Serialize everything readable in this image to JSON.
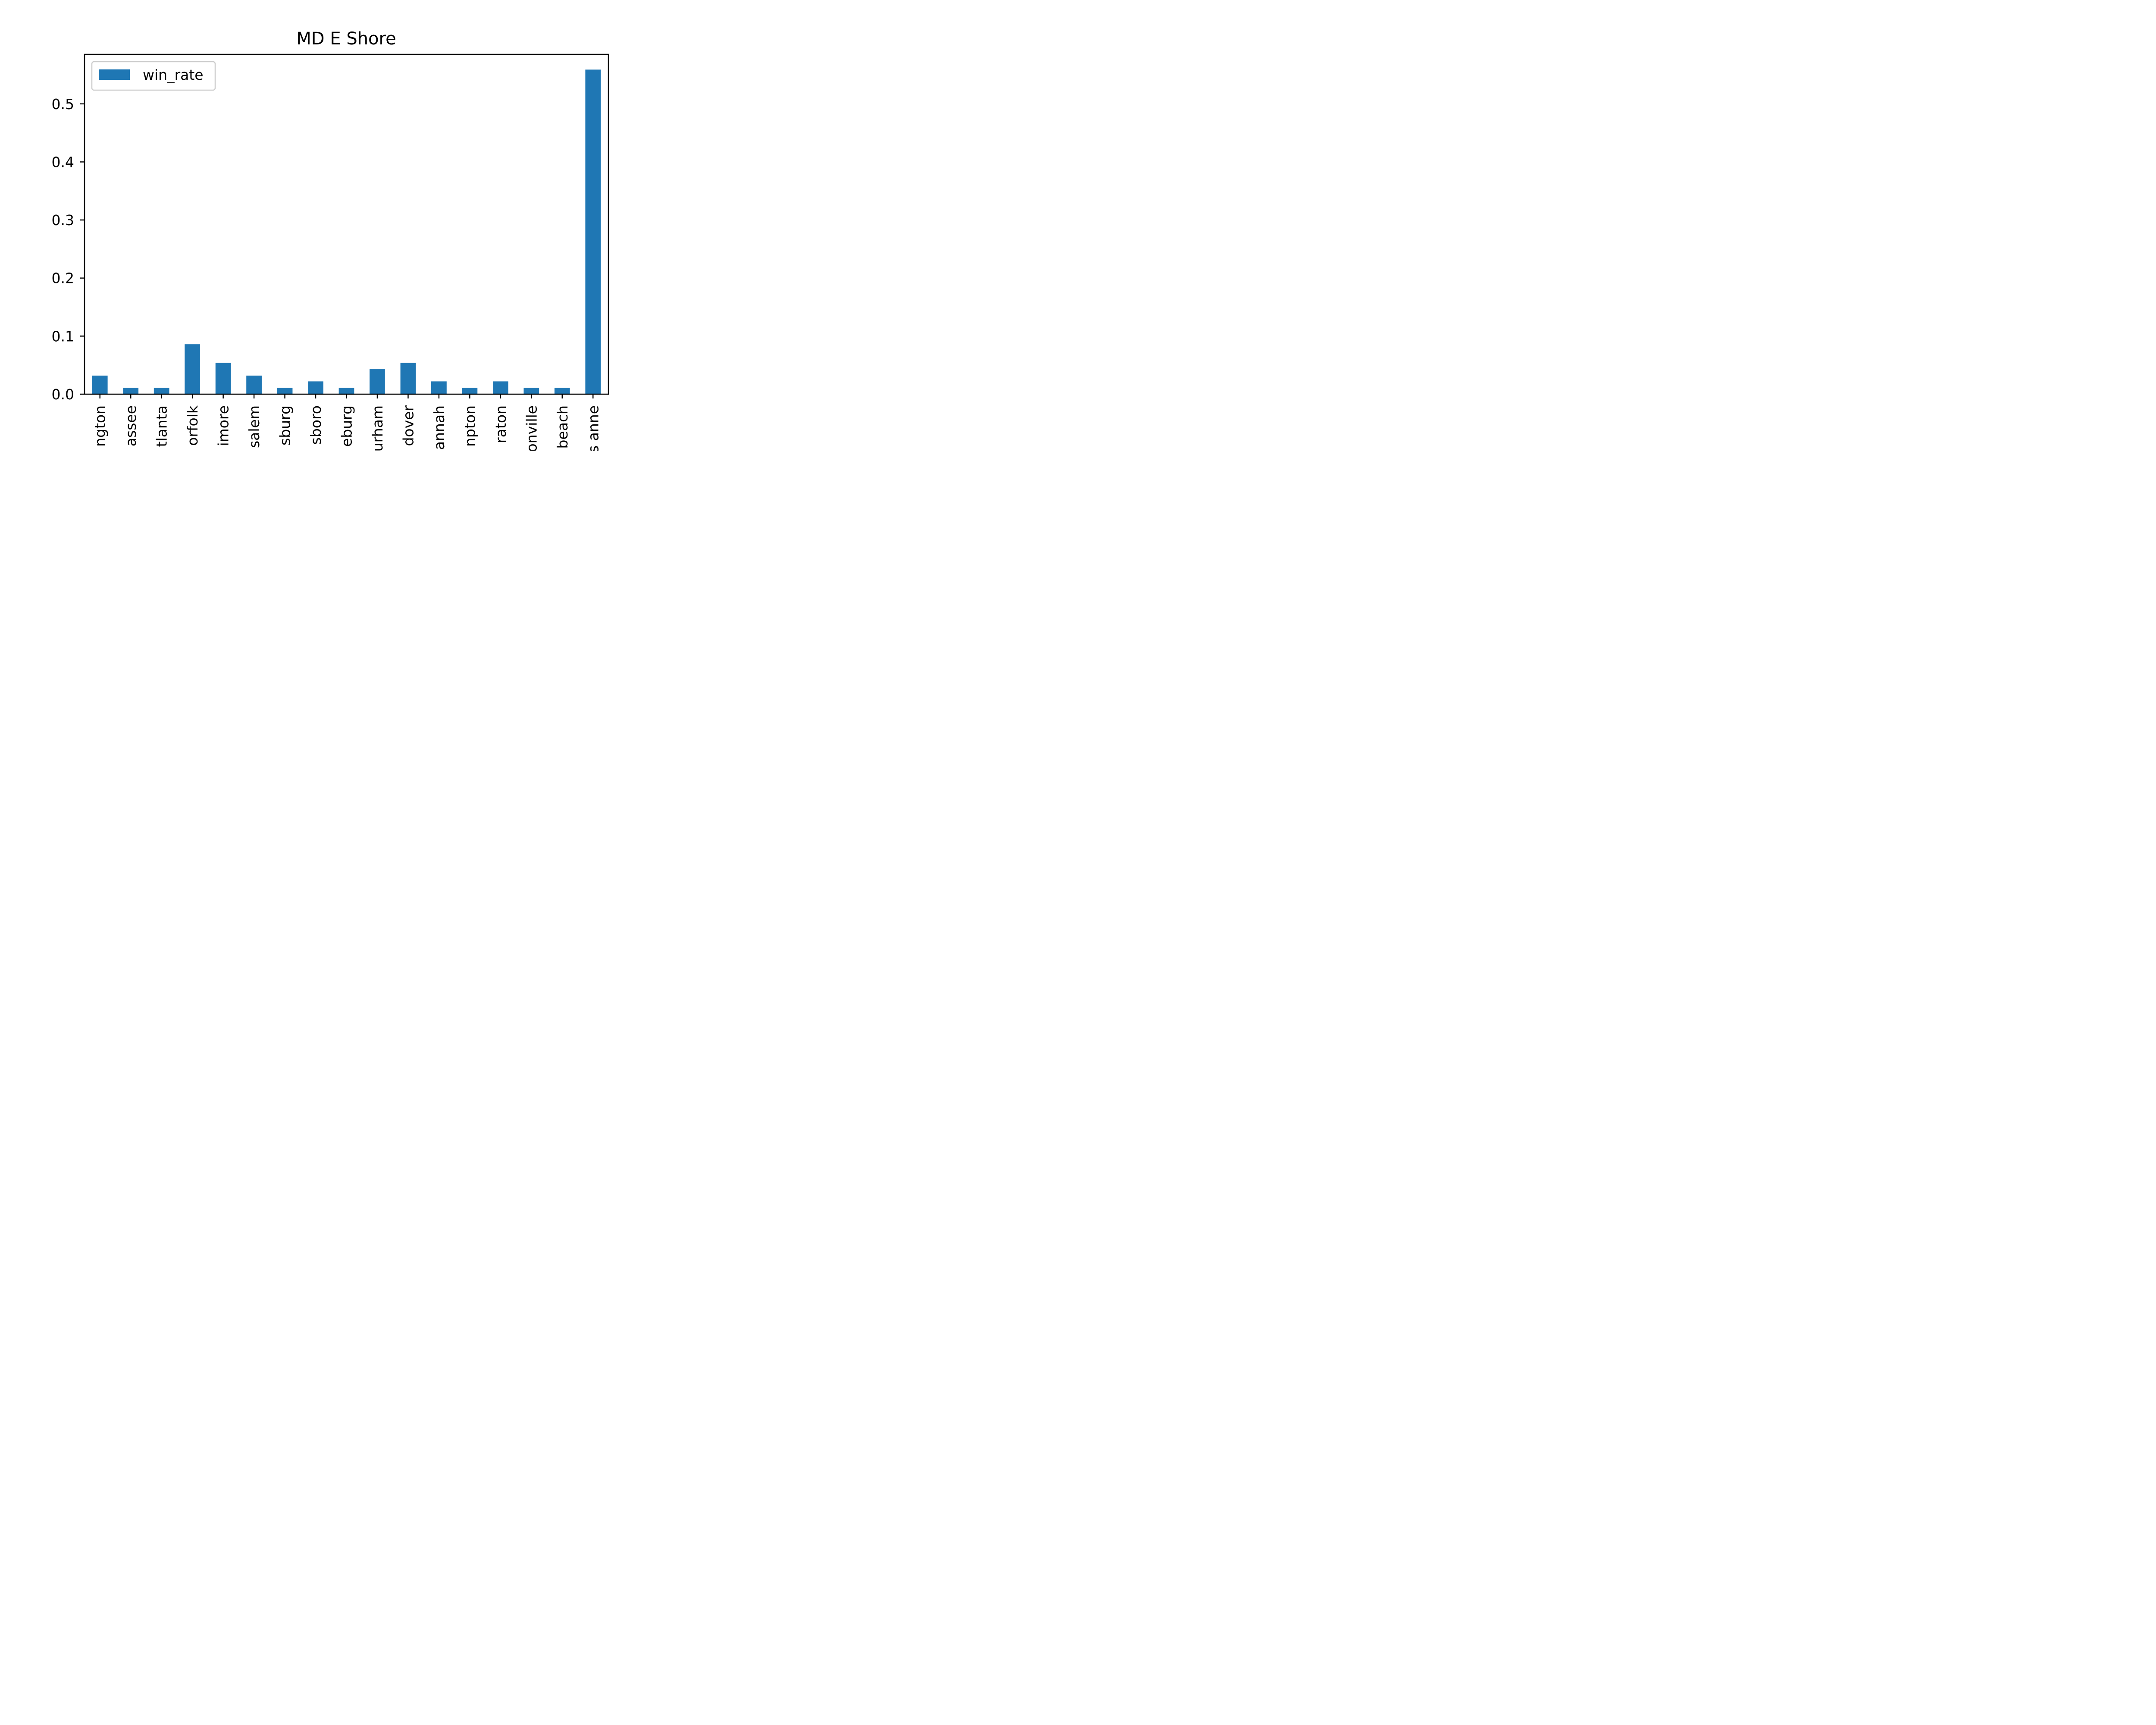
{
  "chart_data": {
    "type": "bar",
    "title": "MD E Shore",
    "xlabel": "",
    "ylabel": "",
    "categories": [
      "ngton",
      "assee",
      "tlanta",
      "orfolk",
      "imore",
      "salem",
      "sburg",
      "sboro",
      "eburg",
      "urham",
      "dover",
      "annah",
      "npton",
      "raton",
      "onville",
      "beach",
      "s anne"
    ],
    "series": [
      {
        "name": "win_rate",
        "values": [
          0.032,
          0.011,
          0.011,
          0.086,
          0.054,
          0.032,
          0.011,
          0.022,
          0.011,
          0.043,
          0.054,
          0.022,
          0.011,
          0.022,
          0.011,
          0.011,
          0.559
        ]
      }
    ],
    "ylim": [
      0,
      0.5853
    ],
    "yticks": [
      0.0,
      0.1,
      0.2,
      0.3,
      0.4,
      0.5
    ],
    "ytick_labels": [
      "0.0",
      "0.1",
      "0.2",
      "0.3",
      "0.4",
      "0.5"
    ],
    "grid": false,
    "legend_position": "upper-left",
    "bar_color": "#1f77b4"
  }
}
